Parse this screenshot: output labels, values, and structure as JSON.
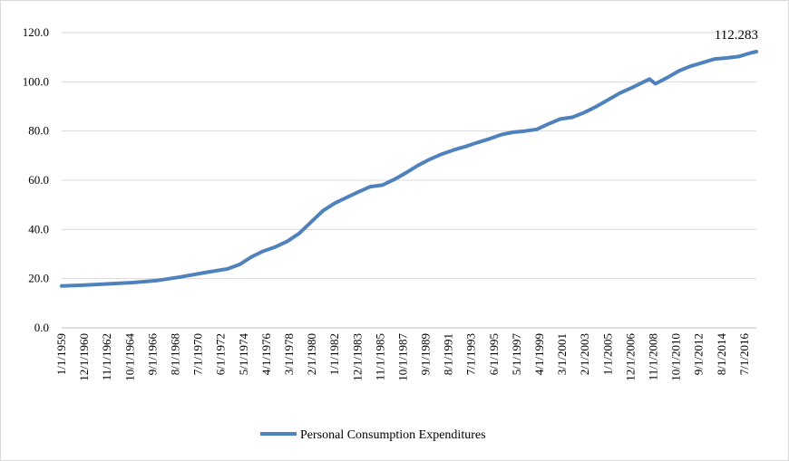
{
  "chart_data": {
    "type": "line",
    "ylim": [
      0,
      120
    ],
    "yticks": [
      "0.0",
      "20.0",
      "40.0",
      "60.0",
      "80.0",
      "100.0",
      "120.0"
    ],
    "xticks": [
      "1/1/1959",
      "12/1/1960",
      "11/1/1962",
      "10/1/1964",
      "9/1/1966",
      "8/1/1968",
      "7/1/1970",
      "6/1/1972",
      "5/1/1974",
      "4/1/1976",
      "3/1/1978",
      "2/1/1980",
      "1/1/1982",
      "12/1/1983",
      "11/1/1985",
      "10/1/1987",
      "9/1/1989",
      "8/1/1991",
      "7/1/1993",
      "6/1/1995",
      "5/1/1997",
      "4/1/1999",
      "3/1/2001",
      "2/1/2003",
      "1/1/2005",
      "12/1/2006",
      "11/1/2008",
      "10/1/2010",
      "9/1/2012",
      "8/1/2014",
      "7/1/2016"
    ],
    "grid": true,
    "legend_position": "bottom",
    "series": [
      {
        "name": "Personal Consumption Expenditures",
        "color": "#4f81bd",
        "x": [
          "1/1/1959",
          "1/1/1961",
          "1/1/1963",
          "1/1/1965",
          "1/1/1967",
          "1/1/1969",
          "1/1/1971",
          "1/1/1973",
          "1/1/1974",
          "1/1/1975",
          "1/1/1976",
          "1/1/1977",
          "1/1/1978",
          "1/1/1979",
          "1/1/1980",
          "1/1/1981",
          "1/1/1982",
          "1/1/1983",
          "1/1/1984",
          "1/1/1985",
          "1/1/1986",
          "1/1/1987",
          "1/1/1988",
          "1/1/1989",
          "1/1/1990",
          "1/1/1991",
          "1/1/1992",
          "1/1/1993",
          "1/1/1994",
          "1/1/1995",
          "1/1/1996",
          "1/1/1997",
          "1/1/1998",
          "1/1/1999",
          "1/1/2000",
          "1/1/2001",
          "1/1/2002",
          "1/1/2003",
          "1/1/2004",
          "1/1/2005",
          "1/1/2006",
          "1/1/2007",
          "7/1/2008",
          "1/1/2009",
          "1/1/2010",
          "1/1/2011",
          "1/1/2012",
          "1/1/2013",
          "1/1/2014",
          "1/1/2015",
          "1/1/2016",
          "1/1/2017",
          "7/1/2017"
        ],
        "values": [
          17.0,
          17.4,
          17.9,
          18.4,
          19.2,
          20.7,
          22.4,
          24.0,
          25.8,
          28.9,
          31.2,
          32.9,
          35.2,
          38.4,
          43.0,
          47.6,
          50.7,
          53.0,
          55.3,
          57.4,
          58.0,
          60.3,
          63.0,
          66.0,
          68.5,
          70.6,
          72.3,
          73.7,
          75.3,
          76.8,
          78.5,
          79.5,
          80.0,
          80.7,
          82.9,
          84.9,
          85.6,
          87.5,
          89.9,
          92.6,
          95.4,
          97.6,
          101.1,
          99.2,
          101.7,
          104.5,
          106.4,
          107.8,
          109.3,
          109.7,
          110.3,
          111.7,
          112.283
        ]
      }
    ],
    "annotations": [
      {
        "text": "112.283",
        "x": "7/1/2017",
        "y": 112.283
      }
    ]
  }
}
